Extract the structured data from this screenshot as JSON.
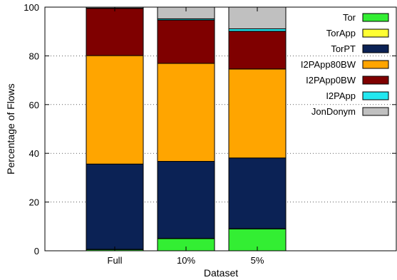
{
  "chart_data": {
    "type": "bar",
    "stacked": true,
    "categories": [
      "Full",
      "10%",
      "5%"
    ],
    "series": [
      {
        "name": "Tor",
        "color": "#33ee33",
        "values": [
          0.5,
          5,
          9
        ]
      },
      {
        "name": "TorApp",
        "color": "#ffff33",
        "values": [
          0.1,
          0.1,
          0.1
        ]
      },
      {
        "name": "TorPT",
        "color": "#0b2255",
        "values": [
          35,
          31.6,
          29
        ]
      },
      {
        "name": "I2PApp80BW",
        "color": "#ffa500",
        "values": [
          44.5,
          40.2,
          36.5
        ]
      },
      {
        "name": "I2PApp0BW",
        "color": "#7f0000",
        "values": [
          19.4,
          17.8,
          15.5
        ]
      },
      {
        "name": "I2PApp",
        "color": "#22e8f0",
        "values": [
          0.1,
          0.5,
          1
        ]
      },
      {
        "name": "JonDonym",
        "color": "#c0c0c0",
        "values": [
          0.4,
          4.8,
          8.9
        ]
      }
    ],
    "xlabel": "Dataset",
    "ylabel": "Percentage of Flows",
    "ylim": [
      0,
      100
    ],
    "yticks": [
      "0",
      "20",
      "40",
      "60",
      "80",
      "100"
    ],
    "grid": "horizontal dotted",
    "legend_position": "top-right"
  }
}
